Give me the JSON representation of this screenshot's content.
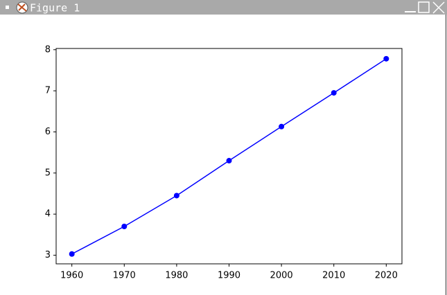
{
  "window": {
    "title": "Figure 1"
  },
  "chart_data": {
    "type": "line",
    "x": [
      1960,
      1970,
      1980,
      1990,
      2000,
      2010,
      2020
    ],
    "series": [
      {
        "color": "#0000ff",
        "values": [
          3.03,
          3.7,
          4.45,
          5.3,
          6.13,
          6.95,
          7.78
        ]
      }
    ],
    "xlim": [
      1957,
      2023
    ],
    "ylim": [
      2.79,
      8.03
    ],
    "xticks": [
      1960,
      1970,
      1980,
      1990,
      2000,
      2010,
      2020
    ],
    "yticks": [
      3,
      4,
      5,
      6,
      7,
      8
    ],
    "grid": false,
    "markers": true
  }
}
